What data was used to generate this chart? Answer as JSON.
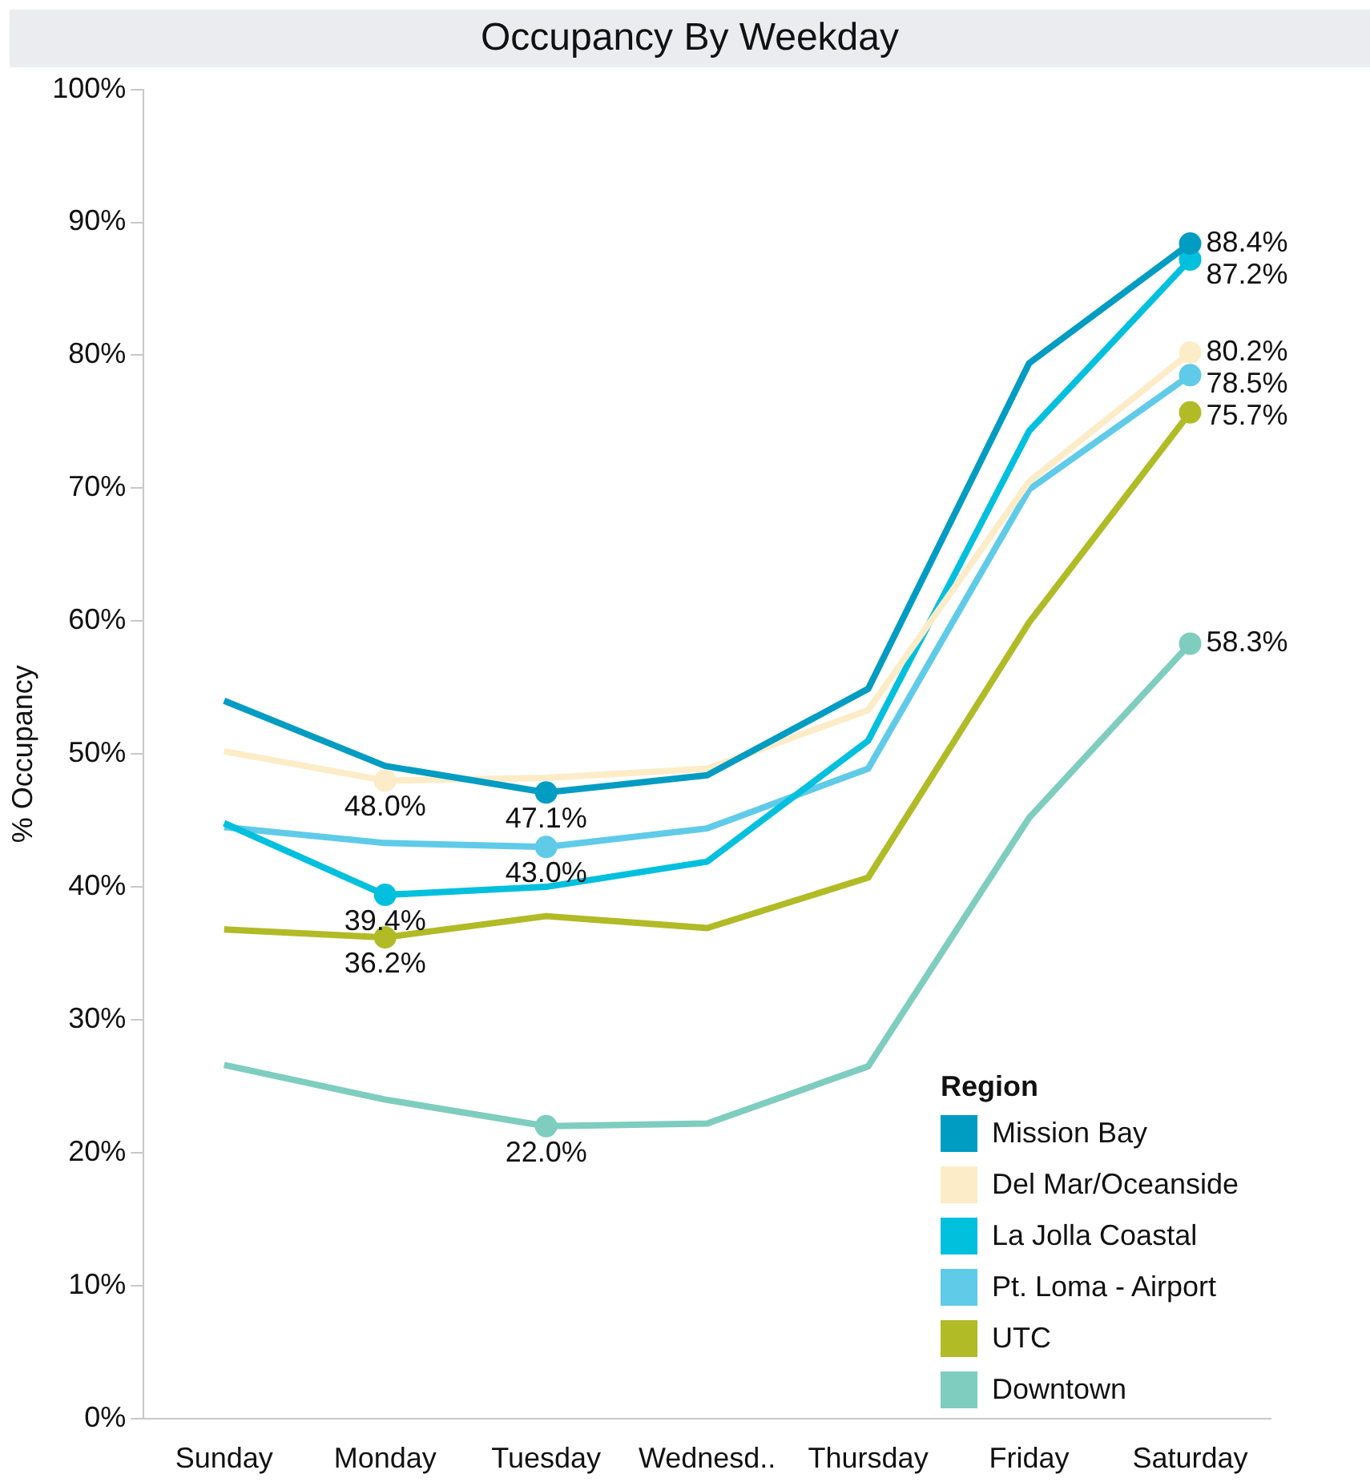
{
  "chart_data": {
    "type": "line",
    "title": "Occupancy By Weekday",
    "ylabel": "% Occupancy",
    "legend_title": "Region",
    "legend": "bottom right",
    "grid": false,
    "line_style": "solid",
    "categories": [
      "Sunday",
      "Monday",
      "Tuesday",
      "Wednesd..",
      "Thursday",
      "Friday",
      "Saturday"
    ],
    "ylim": [
      0,
      100
    ],
    "yticks": [
      {
        "value": 0,
        "label": "0%"
      },
      {
        "value": 10,
        "label": "10%"
      },
      {
        "value": 20,
        "label": "20%"
      },
      {
        "value": 30,
        "label": "30%"
      },
      {
        "value": 40,
        "label": "40%"
      },
      {
        "value": 50,
        "label": "50%"
      },
      {
        "value": 60,
        "label": "60%"
      },
      {
        "value": 70,
        "label": "70%"
      },
      {
        "value": 80,
        "label": "80%"
      },
      {
        "value": 90,
        "label": "90%"
      },
      {
        "value": 100,
        "label": "100%"
      }
    ],
    "series": [
      {
        "name": "Mission Bay",
        "color": "#009cc2",
        "values": [
          54.0,
          49.1,
          47.1,
          48.4,
          54.9,
          79.4,
          88.4
        ],
        "value_labels": [
          null,
          null,
          "47.1%",
          null,
          null,
          null,
          "88.4%"
        ]
      },
      {
        "name": "Del Mar/Oceanside",
        "color": "#fdecc8",
        "values": [
          50.2,
          48.0,
          48.2,
          48.9,
          53.3,
          70.5,
          80.2
        ],
        "value_labels": [
          null,
          "48.0%",
          null,
          null,
          null,
          null,
          "80.2%"
        ]
      },
      {
        "name": "La Jolla Coastal",
        "color": "#00c0de",
        "values": [
          44.8,
          39.4,
          40.0,
          41.9,
          51.0,
          74.3,
          87.2
        ],
        "value_labels": [
          null,
          "39.4%",
          null,
          null,
          null,
          null,
          "87.2%"
        ]
      },
      {
        "name": "Pt. Loma - Airport",
        "color": "#5fcbe8",
        "values": [
          44.5,
          43.3,
          43.0,
          44.4,
          48.9,
          69.9,
          78.5
        ],
        "value_labels": [
          null,
          null,
          "43.0%",
          null,
          null,
          null,
          "78.5%"
        ]
      },
      {
        "name": "UTC",
        "color": "#b0bb26",
        "values": [
          36.8,
          36.2,
          37.8,
          36.9,
          40.7,
          59.9,
          75.7
        ],
        "value_labels": [
          null,
          "36.2%",
          null,
          null,
          null,
          null,
          "75.7%"
        ]
      },
      {
        "name": "Downtown",
        "color": "#7ecdbf",
        "values": [
          26.6,
          24.0,
          22.0,
          22.2,
          26.5,
          45.2,
          58.3
        ],
        "value_labels": [
          null,
          null,
          "22.0%",
          null,
          null,
          null,
          "58.3%"
        ]
      }
    ]
  }
}
